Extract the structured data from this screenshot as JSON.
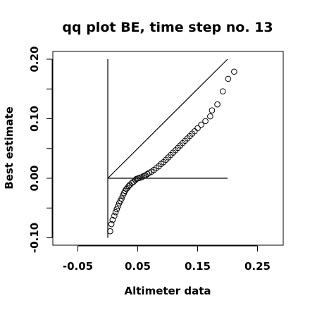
{
  "chart_data": {
    "type": "scatter",
    "title": "qq plot BE, time step no. 13",
    "xlabel": "Altimeter data",
    "ylabel": "Best estimate",
    "xlim": [
      -0.1,
      0.3
    ],
    "ylim": [
      -0.11,
      0.21
    ],
    "x_ticks": [
      -0.05,
      0.05,
      0.15,
      0.25
    ],
    "x_tick_labels": [
      "-0.05",
      "0.05",
      "0.15",
      "0.25"
    ],
    "y_ticks": [
      -0.1,
      0.0,
      0.1,
      0.2
    ],
    "y_tick_labels": [
      "-0.10",
      "0.00",
      "0.10",
      "0.20"
    ],
    "grid": false,
    "legend": "none",
    "reference_lines": [
      {
        "kind": "identity",
        "x": [
          0.0,
          0.2
        ],
        "y": [
          0.0,
          0.2
        ]
      },
      {
        "kind": "horizontal",
        "x": [
          0.0,
          0.2
        ],
        "y": [
          0.0,
          0.0
        ]
      },
      {
        "kind": "vertical",
        "x": [
          0.0,
          0.0
        ],
        "y": [
          -0.1,
          0.2
        ]
      }
    ],
    "points": [
      {
        "x": 0.004,
        "y": -0.089
      },
      {
        "x": 0.006,
        "y": -0.077
      },
      {
        "x": 0.008,
        "y": -0.07
      },
      {
        "x": 0.011,
        "y": -0.063
      },
      {
        "x": 0.013,
        "y": -0.057
      },
      {
        "x": 0.015,
        "y": -0.052
      },
      {
        "x": 0.017,
        "y": -0.047
      },
      {
        "x": 0.019,
        "y": -0.042
      },
      {
        "x": 0.021,
        "y": -0.038
      },
      {
        "x": 0.023,
        "y": -0.034
      },
      {
        "x": 0.025,
        "y": -0.029
      },
      {
        "x": 0.027,
        "y": -0.025
      },
      {
        "x": 0.029,
        "y": -0.021
      },
      {
        "x": 0.031,
        "y": -0.018
      },
      {
        "x": 0.033,
        "y": -0.016
      },
      {
        "x": 0.035,
        "y": -0.013
      },
      {
        "x": 0.037,
        "y": -0.011
      },
      {
        "x": 0.04,
        "y": -0.008
      },
      {
        "x": 0.043,
        "y": -0.006
      },
      {
        "x": 0.046,
        "y": -0.003
      },
      {
        "x": 0.048,
        "y": -0.001
      },
      {
        "x": 0.051,
        "y": 0.0
      },
      {
        "x": 0.054,
        "y": 0.001
      },
      {
        "x": 0.057,
        "y": 0.002
      },
      {
        "x": 0.06,
        "y": 0.004
      },
      {
        "x": 0.063,
        "y": 0.005
      },
      {
        "x": 0.066,
        "y": 0.007
      },
      {
        "x": 0.069,
        "y": 0.009
      },
      {
        "x": 0.073,
        "y": 0.011
      },
      {
        "x": 0.077,
        "y": 0.014
      },
      {
        "x": 0.081,
        "y": 0.017
      },
      {
        "x": 0.085,
        "y": 0.02
      },
      {
        "x": 0.089,
        "y": 0.024
      },
      {
        "x": 0.093,
        "y": 0.027
      },
      {
        "x": 0.097,
        "y": 0.031
      },
      {
        "x": 0.101,
        "y": 0.035
      },
      {
        "x": 0.105,
        "y": 0.039
      },
      {
        "x": 0.109,
        "y": 0.043
      },
      {
        "x": 0.113,
        "y": 0.047
      },
      {
        "x": 0.117,
        "y": 0.051
      },
      {
        "x": 0.121,
        "y": 0.055
      },
      {
        "x": 0.125,
        "y": 0.059
      },
      {
        "x": 0.129,
        "y": 0.063
      },
      {
        "x": 0.133,
        "y": 0.067
      },
      {
        "x": 0.137,
        "y": 0.071
      },
      {
        "x": 0.141,
        "y": 0.075
      },
      {
        "x": 0.145,
        "y": 0.079
      },
      {
        "x": 0.15,
        "y": 0.084
      },
      {
        "x": 0.156,
        "y": 0.09
      },
      {
        "x": 0.163,
        "y": 0.096
      },
      {
        "x": 0.171,
        "y": 0.104
      },
      {
        "x": 0.174,
        "y": 0.114
      },
      {
        "x": 0.183,
        "y": 0.124
      },
      {
        "x": 0.192,
        "y": 0.146
      },
      {
        "x": 0.201,
        "y": 0.167
      },
      {
        "x": 0.211,
        "y": 0.179
      }
    ]
  }
}
